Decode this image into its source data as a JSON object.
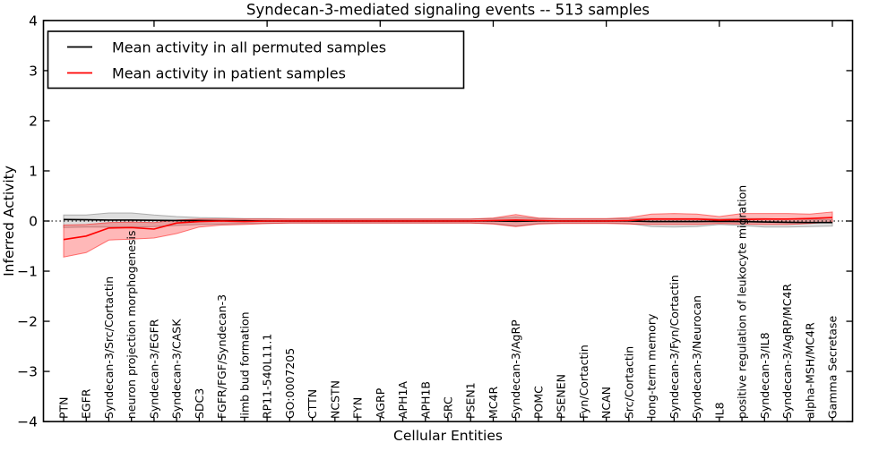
{
  "figure": {
    "title": "Syndecan-3-mediated signaling events -- 513 samples",
    "xlabel": "Cellular Entities",
    "ylabel": "Inferred Activity"
  },
  "legend": {
    "items": [
      {
        "label": "Mean activity in all permuted samples",
        "color": "#000000"
      },
      {
        "label": "Mean activity in patient samples",
        "color": "#ff0000"
      }
    ]
  },
  "colors": {
    "patient_line": "#ff0000",
    "patient_band_fill": "rgba(255,0,0,0.28)",
    "patient_band_edge": "rgba(255,0,0,0.5)",
    "permuted_line": "#000000",
    "permuted_band_fill": "rgba(0,0,0,0.13)",
    "permuted_band_edge": "rgba(130,130,130,0.6)",
    "background": "#ffffff"
  },
  "chart_data": {
    "type": "line",
    "title": "Syndecan-3-mediated signaling events -- 513 samples",
    "xlabel": "Cellular Entities",
    "ylabel": "Inferred Activity",
    "ylim": [
      -4,
      4
    ],
    "yticks": [
      -4,
      -3,
      -2,
      -1,
      0,
      1,
      2,
      3,
      4
    ],
    "grid": false,
    "legend_position": "upper left",
    "zero_reference_line": true,
    "top_tick_indices": [
      4,
      9,
      14,
      19,
      24,
      29,
      34
    ],
    "categories": [
      "PTN",
      "EGFR",
      "Syndecan-3/Src/Cortactin",
      "neuron projection morphogenesis",
      "Syndecan-3/EGFR",
      "Syndecan-3/CASK",
      "SDC3",
      "FGFR/FGF/Syndecan-3",
      "limb bud formation",
      "RP11-540L11.1",
      "GO:0007205",
      "CTTN",
      "NCSTN",
      "FYN",
      "AGRP",
      "APH1A",
      "APH1B",
      "SRC",
      "PSEN1",
      "MC4R",
      "Syndecan-3/AgRP",
      "POMC",
      "PSENEN",
      "Fyn/Cortactin",
      "NCAN",
      "Src/Cortactin",
      "long-term memory",
      "Syndecan-3/Fyn/Cortactin",
      "Syndecan-3/Neurocan",
      "IL8",
      "positive regulation of leukocyte migration",
      "Syndecan-3/IL8",
      "Syndecan-3/AgRP/MC4R",
      "alpha-MSH/MC4R",
      "Gamma Secretase"
    ],
    "series": [
      {
        "name": "Mean activity in all permuted samples",
        "values": [
          0.03,
          0.025,
          0.02,
          0.02,
          0.015,
          0.01,
          0.01,
          0.005,
          0.005,
          0,
          0,
          0,
          0,
          0,
          0,
          0,
          0,
          0,
          0,
          0,
          -0.005,
          0,
          0,
          0,
          0,
          0,
          -0.01,
          -0.01,
          -0.01,
          -0.005,
          -0.01,
          -0.02,
          -0.025,
          -0.03,
          -0.03
        ],
        "band_low": [
          -0.13,
          -0.12,
          -0.12,
          -0.12,
          -0.11,
          -0.09,
          -0.07,
          -0.06,
          -0.05,
          -0.05,
          -0.04,
          -0.04,
          -0.04,
          -0.04,
          -0.04,
          -0.04,
          -0.04,
          -0.04,
          -0.04,
          -0.05,
          -0.1,
          -0.05,
          -0.04,
          -0.04,
          -0.04,
          -0.05,
          -0.11,
          -0.12,
          -0.11,
          -0.07,
          -0.09,
          -0.12,
          -0.12,
          -0.11,
          -0.1
        ],
        "band_high": [
          0.12,
          0.12,
          0.16,
          0.16,
          0.12,
          0.09,
          0.07,
          0.06,
          0.05,
          0.05,
          0.04,
          0.04,
          0.04,
          0.04,
          0.04,
          0.04,
          0.04,
          0.04,
          0.04,
          0.05,
          0.08,
          0.05,
          0.04,
          0.04,
          0.04,
          0.05,
          0.05,
          0.05,
          0.05,
          0.04,
          0.05,
          0.05,
          0.04,
          0.03,
          0.03
        ]
      },
      {
        "name": "Mean activity in patient samples",
        "values": [
          -0.37,
          -0.3,
          -0.14,
          -0.13,
          -0.16,
          -0.04,
          -0.01,
          0.0,
          -0.01,
          0.0,
          0.0,
          0.0,
          0.0,
          0.0,
          0.0,
          0.0,
          0.0,
          0.0,
          0.0,
          0.01,
          0.02,
          0.01,
          0.0,
          0.0,
          0.0,
          0.01,
          0.04,
          0.04,
          0.04,
          0.02,
          0.03,
          0.04,
          0.04,
          0.05,
          0.07
        ],
        "band_low": [
          -0.72,
          -0.63,
          -0.38,
          -0.36,
          -0.34,
          -0.25,
          -0.12,
          -0.08,
          -0.07,
          -0.05,
          -0.04,
          -0.04,
          -0.04,
          -0.04,
          -0.04,
          -0.04,
          -0.04,
          -0.04,
          -0.04,
          -0.06,
          -0.11,
          -0.06,
          -0.05,
          -0.05,
          -0.05,
          -0.06,
          -0.07,
          -0.07,
          -0.07,
          -0.05,
          -0.06,
          -0.07,
          -0.07,
          -0.05,
          -0.02
        ],
        "band_high": [
          -0.08,
          -0.07,
          -0.03,
          -0.02,
          -0.03,
          0.02,
          0.04,
          0.04,
          0.04,
          0.04,
          0.04,
          0.04,
          0.04,
          0.04,
          0.04,
          0.04,
          0.04,
          0.04,
          0.04,
          0.06,
          0.13,
          0.06,
          0.05,
          0.05,
          0.05,
          0.07,
          0.14,
          0.15,
          0.14,
          0.09,
          0.15,
          0.15,
          0.15,
          0.14,
          0.18
        ]
      }
    ]
  }
}
